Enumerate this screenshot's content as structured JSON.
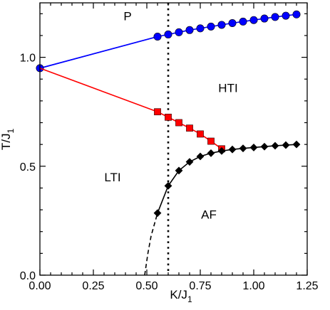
{
  "chart_data": {
    "type": "line",
    "xlabel": "K/J",
    "xlabel_sub": "1",
    "ylabel": "T/J",
    "ylabel_sub": "1",
    "xlim": [
      0.0,
      1.25
    ],
    "ylim": [
      0.0,
      1.25
    ],
    "xticks": [
      0.0,
      0.25,
      0.5,
      0.75,
      1.0,
      1.25
    ],
    "xtick_labels": [
      "0.00",
      "0.25",
      "0.50",
      "0.75",
      "1.00",
      "1.25"
    ],
    "yticks": [
      0.0,
      0.5,
      1.0
    ],
    "ytick_labels": [
      "0.0",
      "0.5",
      "1.0"
    ],
    "grid": false,
    "legend": "none",
    "region_labels": [
      {
        "text": "P",
        "x": 0.41,
        "y": 1.17
      },
      {
        "text": "HTI",
        "x": 0.88,
        "y": 0.84
      },
      {
        "text": "LTI",
        "x": 0.34,
        "y": 0.43
      },
      {
        "text": "AF",
        "x": 0.79,
        "y": 0.26
      }
    ],
    "vertical_line": {
      "x": 0.6,
      "style": "dotted",
      "color": "#000000"
    },
    "series": [
      {
        "color": "#0000ff",
        "marker": "circle",
        "line_x": [
          0.0,
          0.55
        ],
        "line_y": [
          0.95,
          1.095
        ],
        "x": [
          0.0,
          0.55,
          0.6,
          0.65,
          0.7,
          0.75,
          0.8,
          0.85,
          0.9,
          0.95,
          1.0,
          1.05,
          1.1,
          1.15,
          1.2
        ],
        "y": [
          0.95,
          1.095,
          1.105,
          1.115,
          1.125,
          1.133,
          1.141,
          1.149,
          1.157,
          1.164,
          1.171,
          1.178,
          1.185,
          1.191,
          1.197
        ]
      },
      {
        "color": "#ff0000",
        "marker": "square",
        "line_x": [
          0.0,
          0.55
        ],
        "line_y": [
          0.95,
          0.75
        ],
        "x": [
          0.55,
          0.6,
          0.65,
          0.7,
          0.75,
          0.8,
          0.85
        ],
        "y": [
          0.75,
          0.725,
          0.7,
          0.675,
          0.648,
          0.615,
          0.58
        ]
      },
      {
        "color": "#000000",
        "marker": "diamond",
        "dashed_x": [
          0.49,
          0.505,
          0.52,
          0.54,
          0.55
        ],
        "dashed_y": [
          0.0,
          0.1,
          0.18,
          0.25,
          0.285
        ],
        "x": [
          0.55,
          0.6,
          0.65,
          0.7,
          0.75,
          0.8,
          0.85,
          0.9,
          0.95,
          1.0,
          1.05,
          1.1,
          1.15,
          1.2
        ],
        "y": [
          0.285,
          0.41,
          0.48,
          0.52,
          0.545,
          0.56,
          0.57,
          0.577,
          0.582,
          0.586,
          0.59,
          0.594,
          0.597,
          0.6
        ]
      }
    ]
  }
}
